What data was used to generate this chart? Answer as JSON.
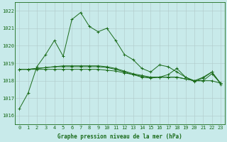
{
  "background_color": "#c8eaea",
  "grid_color": "#b0c8c8",
  "line_color": "#1a6b1a",
  "xlabel": "Graphe pression niveau de la mer (hPa)",
  "xlim": [
    -0.5,
    23.5
  ],
  "ylim": [
    1015.5,
    1022.5
  ],
  "yticks": [
    1016,
    1017,
    1018,
    1019,
    1020,
    1021,
    1022
  ],
  "xticks": [
    0,
    1,
    2,
    3,
    4,
    5,
    6,
    7,
    8,
    9,
    10,
    11,
    12,
    13,
    14,
    15,
    16,
    17,
    18,
    19,
    20,
    21,
    22,
    23
  ],
  "series1": [
    1016.4,
    1017.3,
    1018.8,
    1019.5,
    1020.3,
    1019.4,
    1021.5,
    1021.9,
    1021.1,
    1020.8,
    1021.0,
    1020.3,
    1019.5,
    1019.2,
    1018.7,
    1018.5,
    1018.9,
    1018.8,
    1018.5,
    1018.2,
    1018.0,
    1018.2,
    1018.5,
    1017.8
  ],
  "series2": [
    1018.65,
    1018.65,
    1018.65,
    1018.65,
    1018.65,
    1018.65,
    1018.65,
    1018.65,
    1018.65,
    1018.65,
    1018.6,
    1018.55,
    1018.45,
    1018.35,
    1018.25,
    1018.2,
    1018.2,
    1018.2,
    1018.2,
    1018.1,
    1018.0,
    1018.0,
    1018.0,
    1017.85
  ],
  "series3": [
    1018.65,
    1018.65,
    1018.7,
    1018.75,
    1018.8,
    1018.85,
    1018.85,
    1018.85,
    1018.85,
    1018.85,
    1018.8,
    1018.7,
    1018.55,
    1018.4,
    1018.3,
    1018.2,
    1018.2,
    1018.2,
    1018.2,
    1018.1,
    1018.0,
    1018.0,
    1018.4,
    1017.85
  ],
  "series4": [
    1018.65,
    1018.65,
    1018.7,
    1018.75,
    1018.8,
    1018.8,
    1018.8,
    1018.8,
    1018.8,
    1018.8,
    1018.75,
    1018.65,
    1018.5,
    1018.35,
    1018.2,
    1018.15,
    1018.2,
    1018.35,
    1018.7,
    1018.2,
    1017.95,
    1018.15,
    1018.5,
    1017.85
  ],
  "xlabel_fontsize": 5.5,
  "tick_fontsize": 5.0
}
